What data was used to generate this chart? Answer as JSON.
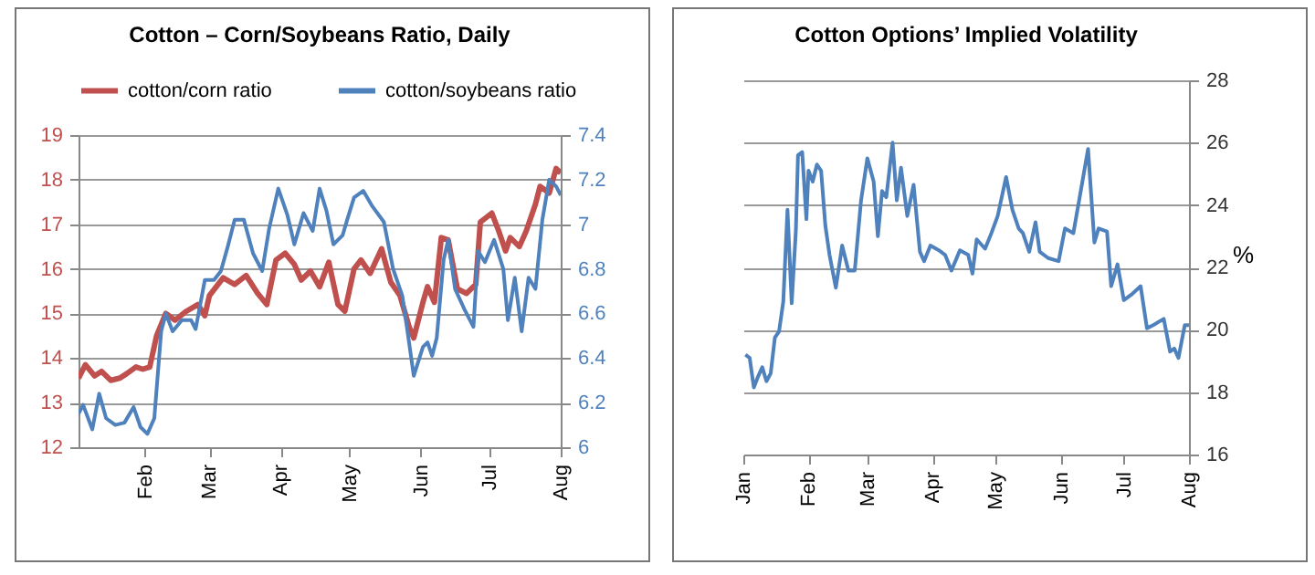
{
  "chart_data": [
    {
      "type": "line",
      "title": "Cotton – Corn/Soybeans Ratio, Daily",
      "legend": "top",
      "grid": "y",
      "xlim": [
        "--01-03",
        "--08-01"
      ],
      "xticks": [
        {
          "value": "--02-01",
          "label": "Feb"
        },
        {
          "value": "--03-01",
          "label": "Mar"
        },
        {
          "value": "--04-01",
          "label": "Apr"
        },
        {
          "value": "--05-01",
          "label": "May"
        },
        {
          "value": "--06-01",
          "label": "Jun"
        },
        {
          "value": "--07-01",
          "label": "Jul"
        },
        {
          "value": "--08-01",
          "label": "Aug"
        }
      ],
      "ylim": [
        12,
        19
      ],
      "yticks": [
        12,
        13,
        14,
        15,
        16,
        17,
        18,
        19
      ],
      "y2lim": [
        6,
        7.4
      ],
      "y2ticks": [
        6,
        6.2,
        6.4,
        6.6,
        6.8,
        7,
        7.2,
        7.4
      ],
      "series": [
        {
          "name": "cotton/corn ratio",
          "color": "#c0504d",
          "x": [
            "--01-03",
            "--01-06",
            "--01-10",
            "--01-13",
            "--01-17",
            "--01-21",
            "--01-24",
            "--01-28",
            "--01-31",
            "--02-03",
            "--02-06",
            "--02-10",
            "--02-14",
            "--02-19",
            "--02-24",
            "--02-27",
            "--03-01",
            "--03-07",
            "--03-12",
            "--03-17",
            "--03-22",
            "--03-26",
            "--03-30",
            "--04-03",
            "--04-07",
            "--04-10",
            "--04-14",
            "--04-18",
            "--04-22",
            "--04-26",
            "--04-29",
            "--05-03",
            "--05-06",
            "--05-10",
            "--05-15",
            "--05-19",
            "--05-23",
            "--05-27",
            "--05-29",
            "--06-02",
            "--06-04",
            "--06-07",
            "--06-10",
            "--06-13",
            "--06-17",
            "--06-21",
            "--06-25",
            "--06-27",
            "--07-02",
            "--07-05",
            "--07-08",
            "--07-10",
            "--07-14",
            "--07-17",
            "--07-21",
            "--07-23",
            "--07-27",
            "--07-30",
            "--08-01"
          ],
          "values": [
            13.55,
            13.85,
            13.6,
            13.7,
            13.5,
            13.55,
            13.65,
            13.8,
            13.75,
            13.8,
            14.5,
            15.0,
            14.85,
            15.05,
            15.2,
            14.95,
            15.4,
            15.8,
            15.65,
            15.85,
            15.45,
            15.2,
            16.2,
            16.35,
            16.1,
            15.75,
            15.95,
            15.6,
            16.15,
            15.2,
            15.05,
            16.0,
            16.2,
            15.9,
            16.45,
            15.7,
            15.4,
            14.7,
            14.45,
            15.25,
            15.6,
            15.25,
            16.7,
            16.65,
            15.55,
            15.45,
            15.65,
            17.05,
            17.25,
            16.85,
            16.4,
            16.7,
            16.5,
            16.85,
            17.45,
            17.85,
            17.7,
            18.25,
            18.15
          ]
        },
        {
          "name": "cotton/soybeans ratio",
          "color": "#4f81bd",
          "axis": "y2",
          "x": [
            "--01-03",
            "--01-05",
            "--01-09",
            "--01-12",
            "--01-15",
            "--01-19",
            "--01-23",
            "--01-27",
            "--01-30",
            "--02-02",
            "--02-05",
            "--02-08",
            "--02-10",
            "--02-13",
            "--02-17",
            "--02-21",
            "--02-23",
            "--02-27",
            "--03-03",
            "--03-06",
            "--03-09",
            "--03-12",
            "--03-16",
            "--03-20",
            "--03-24",
            "--03-27",
            "--03-31",
            "--04-04",
            "--04-07",
            "--04-11",
            "--04-15",
            "--04-18",
            "--04-21",
            "--04-24",
            "--04-28",
            "--04-30",
            "--05-03",
            "--05-07",
            "--05-11",
            "--05-16",
            "--05-20",
            "--05-24",
            "--05-26",
            "--05-29",
            "--06-02",
            "--06-04",
            "--06-06",
            "--06-08",
            "--06-11",
            "--06-13",
            "--06-16",
            "--06-20",
            "--06-24",
            "--06-26",
            "--06-29",
            "--07-03",
            "--07-07",
            "--07-09",
            "--07-12",
            "--07-15",
            "--07-18",
            "--07-21",
            "--07-24",
            "--07-27",
            "--07-30",
            "--08-01"
          ],
          "values": [
            6.15,
            6.19,
            6.08,
            6.24,
            6.13,
            6.1,
            6.11,
            6.18,
            6.09,
            6.06,
            6.13,
            6.52,
            6.6,
            6.52,
            6.57,
            6.57,
            6.53,
            6.75,
            6.75,
            6.79,
            6.9,
            7.02,
            7.02,
            6.87,
            6.79,
            6.98,
            7.16,
            7.04,
            6.91,
            7.05,
            6.97,
            7.16,
            7.06,
            6.91,
            6.95,
            7.02,
            7.12,
            7.15,
            7.08,
            7.01,
            6.8,
            6.68,
            6.54,
            6.32,
            6.45,
            6.47,
            6.41,
            6.49,
            6.84,
            6.93,
            6.71,
            6.62,
            6.54,
            6.88,
            6.83,
            6.93,
            6.8,
            6.57,
            6.76,
            6.52,
            6.76,
            6.71,
            7.02,
            7.2,
            7.17,
            7.13
          ]
        }
      ]
    },
    {
      "type": "line",
      "title": "Cotton Options’ Implied Volatility",
      "y2label": "%",
      "grid": "y",
      "xlim": [
        "--01-01",
        "--08-01"
      ],
      "xticks": [
        {
          "value": "--01-01",
          "label": "Jan"
        },
        {
          "value": "--02-01",
          "label": "Feb"
        },
        {
          "value": "--03-01",
          "label": "Mar"
        },
        {
          "value": "--04-01",
          "label": "Apr"
        },
        {
          "value": "--05-01",
          "label": "May"
        },
        {
          "value": "--06-01",
          "label": "Jun"
        },
        {
          "value": "--07-01",
          "label": "Jul"
        },
        {
          "value": "--08-01",
          "label": "Aug"
        }
      ],
      "y2lim": [
        16,
        28
      ],
      "y2ticks": [
        16,
        18,
        20,
        22,
        24,
        26,
        28
      ],
      "series": [
        {
          "color": "#4f81bd",
          "axis": "y2",
          "x": [
            "--01-02",
            "--01-04",
            "--01-06",
            "--01-08",
            "--01-10",
            "--01-12",
            "--01-14",
            "--01-16",
            "--01-18",
            "--01-20",
            "--01-22",
            "--01-24",
            "--01-26",
            "--01-27",
            "--01-29",
            "--01-31",
            "--02-01",
            "--02-03",
            "--02-05",
            "--02-07",
            "--02-09",
            "--02-11",
            "--02-14",
            "--02-17",
            "--02-20",
            "--02-23",
            "--02-26",
            "--03-01",
            "--03-04",
            "--03-06",
            "--03-08",
            "--03-10",
            "--03-13",
            "--03-15",
            "--03-17",
            "--03-20",
            "--03-23",
            "--03-26",
            "--03-28",
            "--03-31",
            "--04-04",
            "--04-07",
            "--04-10",
            "--04-14",
            "--04-18",
            "--04-20",
            "--04-22",
            "--04-26",
            "--04-29",
            "--05-02",
            "--05-06",
            "--05-09",
            "--05-12",
            "--05-14",
            "--05-17",
            "--05-20",
            "--05-22",
            "--05-26",
            "--05-31",
            "--06-03",
            "--06-07",
            "--06-10",
            "--06-14",
            "--06-17",
            "--06-19",
            "--06-23",
            "--06-25",
            "--06-28",
            "--07-01",
            "--07-05",
            "--07-09",
            "--07-12",
            "--07-15",
            "--07-20",
            "--07-23",
            "--07-25",
            "--07-27",
            "--07-30",
            "--08-01"
          ],
          "values": [
            19.2,
            19.1,
            18.15,
            18.5,
            18.8,
            18.35,
            18.6,
            19.75,
            19.95,
            20.9,
            23.85,
            20.85,
            23.2,
            25.6,
            25.7,
            23.55,
            25.1,
            24.75,
            25.3,
            25.1,
            23.35,
            22.4,
            21.35,
            22.7,
            21.9,
            21.9,
            24.15,
            25.5,
            24.75,
            23.0,
            24.45,
            24.25,
            26.0,
            24.15,
            25.2,
            23.65,
            24.65,
            22.5,
            22.2,
            22.7,
            22.55,
            22.4,
            21.9,
            22.55,
            22.4,
            21.8,
            22.9,
            22.6,
            23.1,
            23.65,
            24.9,
            23.85,
            23.25,
            23.1,
            22.5,
            23.45,
            22.5,
            22.3,
            22.2,
            23.25,
            23.1,
            24.25,
            25.8,
            22.8,
            23.25,
            23.15,
            21.4,
            22.1,
            20.95,
            21.15,
            21.4,
            20.05,
            20.15,
            20.35,
            19.3,
            19.4,
            19.1,
            20.15,
            20.15
          ]
        }
      ]
    }
  ]
}
